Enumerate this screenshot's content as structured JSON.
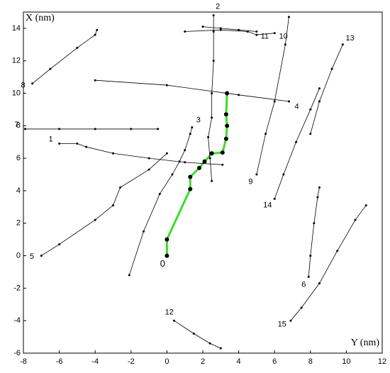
{
  "chart_data": {
    "type": "line",
    "x_label": "Y (nm)",
    "y_label": "X (nm)",
    "xlim": [
      -8,
      12
    ],
    "xticks": [
      -8,
      -6,
      -4,
      -2,
      0,
      2,
      4,
      6,
      8,
      10,
      12
    ],
    "ylim": [
      -6,
      15
    ],
    "yticks": [
      -6,
      -4,
      -2,
      0,
      2,
      4,
      6,
      8,
      10,
      12,
      14
    ],
    "grid": false,
    "series": [
      {
        "name": "0",
        "color": "#3ddc2a",
        "x": [
          0,
          0,
          1.3,
          1.3,
          1.8,
          2.1,
          2.5,
          3.1,
          3.3,
          3.35,
          3.3,
          3.35
        ],
        "values": [
          0,
          1,
          4.1,
          4.85,
          5.4,
          5.8,
          6.3,
          6.35,
          7.2,
          8,
          8.7,
          10
        ]
      },
      {
        "name": "1",
        "color": "#000000",
        "x": [
          -6,
          -5,
          -4.5,
          -3,
          -1,
          1,
          3.1
        ],
        "values": [
          6.9,
          6.9,
          6.7,
          6.3,
          6,
          5.75,
          5.6
        ]
      },
      {
        "name": "2",
        "color": "#000000",
        "x": [
          2.6,
          2.6,
          2.6,
          2.5,
          2.5,
          2.3,
          2.4,
          2.5
        ],
        "values": [
          14.8,
          13.8,
          12,
          10,
          8.5,
          7.3,
          6,
          4.6
        ]
      },
      {
        "name": "3",
        "color": "#000000",
        "x": [
          1.4,
          1.3,
          1,
          0.7,
          0.3,
          -0.4,
          -1.3,
          -2.1
        ],
        "values": [
          7.9,
          7.5,
          6.5,
          5.8,
          5,
          3.8,
          1.5,
          -1.2
        ]
      },
      {
        "name": "4",
        "color": "#000000",
        "x": [
          6.8,
          4,
          0,
          -4
        ],
        "values": [
          9.5,
          9.9,
          10.5,
          10.8
        ]
      },
      {
        "name": "5",
        "color": "#000000",
        "x": [
          -7,
          -6,
          -4,
          -3,
          -2.6,
          -1,
          0
        ],
        "values": [
          0,
          0.7,
          2.2,
          3.1,
          4.2,
          5.3,
          6.3
        ]
      },
      {
        "name": "6",
        "color": "#000000",
        "x": [
          7.9,
          8,
          8.2,
          8.4,
          8.5
        ],
        "values": [
          -1.3,
          0,
          2,
          3.6,
          4.2
        ]
      },
      {
        "name": "7",
        "color": "#000000",
        "x": [
          -7.9,
          -6,
          -4,
          -2,
          -0.5
        ],
        "values": [
          7.8,
          7.8,
          7.8,
          7.8,
          7.8
        ]
      },
      {
        "name": "8",
        "color": "#000000",
        "x": [
          -7.5,
          -6.5,
          -5,
          -4,
          -3.9
        ],
        "values": [
          10.6,
          11.5,
          12.8,
          13.6,
          13.9
        ]
      },
      {
        "name": "9",
        "color": "#000000",
        "x": [
          5,
          5.5,
          6,
          6.6,
          6.8
        ],
        "values": [
          5,
          7.5,
          9.5,
          13,
          14.7
        ]
      },
      {
        "name": "10",
        "color": "#000000",
        "x": [
          6,
          5,
          4.5,
          3,
          1
        ],
        "values": [
          13.7,
          13.6,
          13.8,
          13.9,
          13.8
        ]
      },
      {
        "name": "11",
        "color": "#000000",
        "x": [
          5,
          4,
          3,
          2
        ],
        "values": [
          13.8,
          13.9,
          14,
          14.1
        ]
      },
      {
        "name": "12",
        "color": "#000000",
        "x": [
          0.4,
          1.5,
          2.4,
          3
        ],
        "values": [
          -4,
          -4.8,
          -5.4,
          -5.7
        ]
      },
      {
        "name": "13",
        "color": "#000000",
        "x": [
          9.8,
          9.2,
          8.5,
          8
        ],
        "values": [
          13,
          11.5,
          9.5,
          7.5
        ]
      },
      {
        "name": "14",
        "color": "#000000",
        "x": [
          6,
          6.5,
          7.2,
          8,
          8.5
        ],
        "values": [
          3.5,
          5,
          7,
          9,
          10.3
        ]
      },
      {
        "name": "15",
        "color": "#000000",
        "x": [
          6.9,
          7.5,
          8.5,
          9.5,
          10.5,
          11.1
        ],
        "values": [
          -4,
          -3.2,
          -1.7,
          0.3,
          2.2,
          3.1
        ]
      }
    ]
  }
}
